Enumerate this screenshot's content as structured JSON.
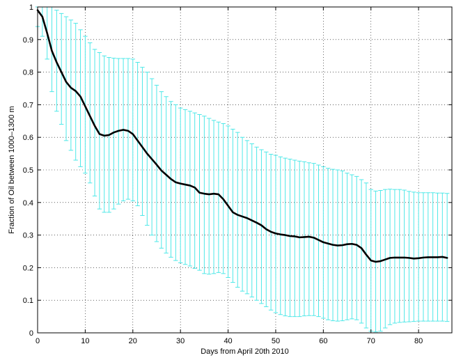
{
  "chart_data": {
    "type": "line",
    "title": "",
    "xlabel": "Days from April 20th 2010",
    "ylabel": "Fraction of Oil between 1000–1300 m",
    "xlim": [
      0,
      87
    ],
    "ylim": [
      0,
      1
    ],
    "xticks": [
      0,
      10,
      20,
      30,
      40,
      50,
      60,
      70,
      80
    ],
    "yticks": [
      0,
      0.1,
      0.2,
      0.3,
      0.4,
      0.5,
      0.6,
      0.7,
      0.8,
      0.9,
      1
    ],
    "grid": true,
    "colors": {
      "mean": "#000000",
      "error_bars": "#4ee8e8"
    },
    "mean": {
      "x": [
        0,
        1,
        2,
        3,
        4,
        5,
        6,
        7,
        8,
        9,
        10,
        11,
        12,
        13,
        14,
        15,
        16,
        17,
        18,
        19,
        20,
        21,
        22,
        23,
        24,
        25,
        26,
        27,
        28,
        29,
        30,
        31,
        32,
        33,
        34,
        35,
        36,
        37,
        38,
        39,
        40,
        41,
        42,
        43,
        44,
        45,
        46,
        47,
        48,
        49,
        50,
        51,
        52,
        53,
        54,
        55,
        56,
        57,
        58,
        59,
        60,
        61,
        62,
        63,
        64,
        65,
        66,
        67,
        68,
        69,
        70,
        71,
        72,
        73,
        74,
        75,
        76,
        77,
        78,
        79,
        80,
        81,
        82,
        83,
        84,
        85,
        86
      ],
      "y": [
        0.99,
        0.97,
        0.92,
        0.865,
        0.83,
        0.8,
        0.77,
        0.752,
        0.742,
        0.725,
        0.695,
        0.665,
        0.635,
        0.61,
        0.605,
        0.607,
        0.615,
        0.62,
        0.623,
        0.62,
        0.61,
        0.59,
        0.57,
        0.55,
        0.533,
        0.516,
        0.498,
        0.485,
        0.472,
        0.462,
        0.458,
        0.455,
        0.452,
        0.446,
        0.43,
        0.427,
        0.425,
        0.427,
        0.425,
        0.41,
        0.39,
        0.37,
        0.362,
        0.357,
        0.352,
        0.345,
        0.338,
        0.33,
        0.318,
        0.31,
        0.305,
        0.302,
        0.3,
        0.297,
        0.296,
        0.293,
        0.294,
        0.295,
        0.292,
        0.285,
        0.278,
        0.274,
        0.27,
        0.268,
        0.269,
        0.272,
        0.273,
        0.27,
        0.26,
        0.24,
        0.222,
        0.218,
        0.22,
        0.225,
        0.23,
        0.231,
        0.231,
        0.231,
        0.23,
        0.228,
        0.229,
        0.231,
        0.232,
        0.232,
        0.232,
        0.233,
        0.23
      ]
    },
    "error_bars": {
      "x": [
        0,
        1,
        2,
        3,
        4,
        5,
        6,
        7,
        8,
        9,
        10,
        11,
        12,
        13,
        14,
        15,
        16,
        17,
        18,
        19,
        20,
        21,
        22,
        23,
        24,
        25,
        26,
        27,
        28,
        29,
        30,
        31,
        32,
        33,
        34,
        35,
        36,
        37,
        38,
        39,
        40,
        41,
        42,
        43,
        44,
        45,
        46,
        47,
        48,
        49,
        50,
        51,
        52,
        53,
        54,
        55,
        56,
        57,
        58,
        59,
        60,
        61,
        62,
        63,
        64,
        65,
        66,
        67,
        68,
        69,
        70,
        71,
        72,
        73,
        74,
        75,
        76,
        77,
        78,
        79,
        80,
        81,
        82,
        83,
        84,
        85,
        86
      ],
      "upper": [
        1.0,
        1.0,
        1.0,
        1.0,
        0.99,
        0.98,
        0.97,
        0.96,
        0.95,
        0.93,
        0.91,
        0.89,
        0.87,
        0.86,
        0.85,
        0.845,
        0.843,
        0.842,
        0.842,
        0.842,
        0.84,
        0.83,
        0.815,
        0.8,
        0.78,
        0.76,
        0.74,
        0.725,
        0.71,
        0.7,
        0.69,
        0.685,
        0.68,
        0.675,
        0.67,
        0.665,
        0.658,
        0.652,
        0.647,
        0.642,
        0.635,
        0.625,
        0.615,
        0.6,
        0.59,
        0.58,
        0.57,
        0.562,
        0.555,
        0.548,
        0.545,
        0.54,
        0.536,
        0.533,
        0.53,
        0.527,
        0.525,
        0.522,
        0.52,
        0.515,
        0.51,
        0.505,
        0.502,
        0.5,
        0.497,
        0.49,
        0.485,
        0.48,
        0.47,
        0.46,
        0.44,
        0.435,
        0.437,
        0.44,
        0.441,
        0.44,
        0.44,
        0.438,
        0.434,
        0.432,
        0.43,
        0.43,
        0.43,
        0.43,
        0.429,
        0.429,
        0.428
      ],
      "lower": [
        0.94,
        0.91,
        0.84,
        0.74,
        0.68,
        0.64,
        0.59,
        0.56,
        0.53,
        0.51,
        0.49,
        0.46,
        0.42,
        0.38,
        0.37,
        0.37,
        0.38,
        0.395,
        0.405,
        0.41,
        0.405,
        0.39,
        0.36,
        0.33,
        0.3,
        0.28,
        0.26,
        0.245,
        0.232,
        0.222,
        0.215,
        0.21,
        0.205,
        0.198,
        0.192,
        0.182,
        0.18,
        0.182,
        0.185,
        0.182,
        0.17,
        0.155,
        0.14,
        0.128,
        0.12,
        0.11,
        0.1,
        0.09,
        0.08,
        0.07,
        0.062,
        0.056,
        0.052,
        0.05,
        0.05,
        0.05,
        0.052,
        0.053,
        0.053,
        0.05,
        0.045,
        0.04,
        0.037,
        0.036,
        0.037,
        0.04,
        0.043,
        0.04,
        0.03,
        0.015,
        0.005,
        0.003,
        0.005,
        0.015,
        0.025,
        0.03,
        0.032,
        0.033,
        0.034,
        0.035,
        0.036,
        0.036,
        0.036,
        0.036,
        0.036,
        0.036,
        0.035
      ]
    }
  }
}
